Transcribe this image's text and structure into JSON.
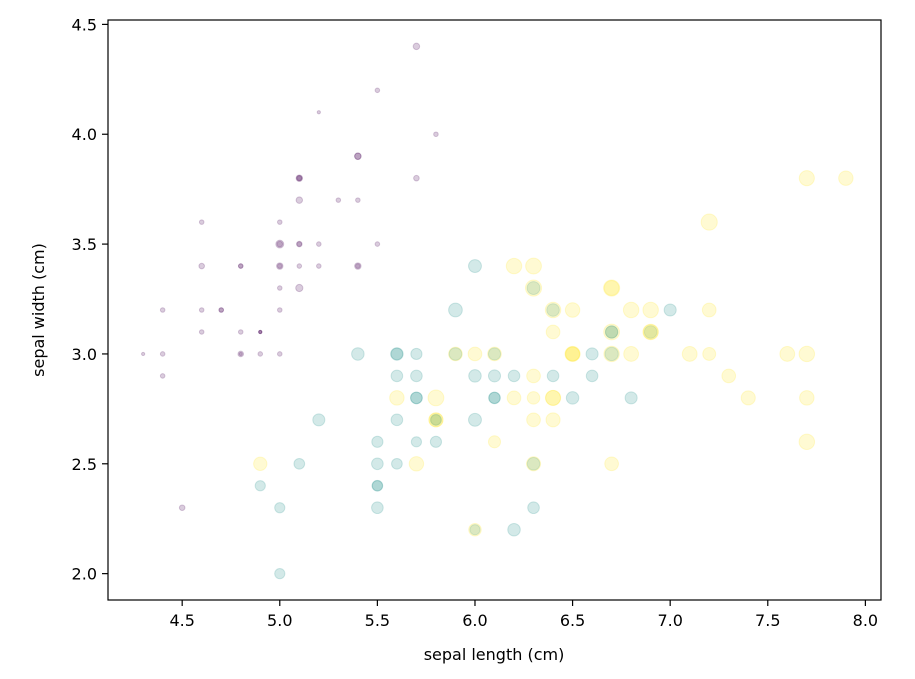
{
  "chart_data": {
    "type": "scatter",
    "title": "",
    "xlabel": "sepal length (cm)",
    "ylabel": "sepal width (cm)",
    "xlim": [
      4.12,
      8.08
    ],
    "ylim": [
      1.88,
      4.52
    ],
    "xticks": [
      4.5,
      5.0,
      5.5,
      6.0,
      6.5,
      7.0,
      7.5,
      8.0
    ],
    "yticks": [
      2.0,
      2.5,
      3.0,
      3.5,
      4.0,
      4.5
    ],
    "xtick_labels": [
      "4.5",
      "5.0",
      "5.5",
      "6.0",
      "6.5",
      "7.0",
      "7.5",
      "8.0"
    ],
    "ytick_labels": [
      "2.0",
      "2.5",
      "3.0",
      "3.5",
      "4.0",
      "4.5"
    ],
    "grid": false,
    "legend": "none",
    "marker_opacity": 0.2,
    "size_encoding": "marker area proportional to petal width",
    "colormap": "viridis",
    "class_colors": [
      "#440154",
      "#21918c",
      "#fde725"
    ],
    "series": [
      {
        "class_index": 0,
        "color": "#440154",
        "points": [
          [
            5.1,
            3.5,
            0.2
          ],
          [
            4.9,
            3.0,
            0.2
          ],
          [
            4.7,
            3.2,
            0.2
          ],
          [
            4.6,
            3.1,
            0.2
          ],
          [
            5.0,
            3.6,
            0.2
          ],
          [
            5.4,
            3.9,
            0.4
          ],
          [
            4.6,
            3.4,
            0.3
          ],
          [
            5.0,
            3.4,
            0.2
          ],
          [
            4.4,
            2.9,
            0.2
          ],
          [
            4.9,
            3.1,
            0.1
          ],
          [
            5.4,
            3.7,
            0.2
          ],
          [
            4.8,
            3.4,
            0.2
          ],
          [
            4.8,
            3.0,
            0.1
          ],
          [
            4.3,
            3.0,
            0.1
          ],
          [
            5.8,
            4.0,
            0.2
          ],
          [
            5.7,
            4.4,
            0.4
          ],
          [
            5.4,
            3.9,
            0.4
          ],
          [
            5.1,
            3.5,
            0.3
          ],
          [
            5.7,
            3.8,
            0.3
          ],
          [
            5.1,
            3.8,
            0.3
          ],
          [
            5.4,
            3.4,
            0.2
          ],
          [
            5.1,
            3.7,
            0.4
          ],
          [
            4.6,
            3.6,
            0.2
          ],
          [
            5.1,
            3.3,
            0.5
          ],
          [
            4.8,
            3.4,
            0.2
          ],
          [
            5.0,
            3.0,
            0.2
          ],
          [
            5.0,
            3.4,
            0.4
          ],
          [
            5.2,
            3.5,
            0.2
          ],
          [
            5.2,
            3.4,
            0.2
          ],
          [
            4.7,
            3.2,
            0.2
          ],
          [
            4.8,
            3.1,
            0.2
          ],
          [
            5.4,
            3.4,
            0.4
          ],
          [
            5.2,
            4.1,
            0.1
          ],
          [
            5.5,
            4.2,
            0.2
          ],
          [
            4.9,
            3.1,
            0.1
          ],
          [
            5.0,
            3.2,
            0.2
          ],
          [
            5.5,
            3.5,
            0.2
          ],
          [
            4.9,
            3.1,
            0.1
          ],
          [
            4.4,
            3.0,
            0.2
          ],
          [
            5.1,
            3.4,
            0.2
          ],
          [
            5.0,
            3.5,
            0.3
          ],
          [
            4.5,
            2.3,
            0.3
          ],
          [
            4.4,
            3.2,
            0.2
          ],
          [
            5.0,
            3.5,
            0.6
          ],
          [
            5.1,
            3.8,
            0.4
          ],
          [
            4.8,
            3.0,
            0.3
          ],
          [
            5.1,
            3.8,
            0.2
          ],
          [
            4.6,
            3.2,
            0.2
          ],
          [
            5.3,
            3.7,
            0.2
          ],
          [
            5.0,
            3.3,
            0.2
          ]
        ]
      },
      {
        "class_index": 1,
        "color": "#21918c",
        "points": [
          [
            7.0,
            3.2,
            1.4
          ],
          [
            6.4,
            3.2,
            1.5
          ],
          [
            6.9,
            3.1,
            1.5
          ],
          [
            5.5,
            2.3,
            1.3
          ],
          [
            6.5,
            2.8,
            1.5
          ],
          [
            5.7,
            2.8,
            1.3
          ],
          [
            6.3,
            3.3,
            1.6
          ],
          [
            4.9,
            2.4,
            1.0
          ],
          [
            6.6,
            2.9,
            1.3
          ],
          [
            5.2,
            2.7,
            1.4
          ],
          [
            5.0,
            2.0,
            1.0
          ],
          [
            5.9,
            3.0,
            1.5
          ],
          [
            6.0,
            2.2,
            1.0
          ],
          [
            6.1,
            2.9,
            1.4
          ],
          [
            5.6,
            2.9,
            1.3
          ],
          [
            6.7,
            3.1,
            1.4
          ],
          [
            5.6,
            3.0,
            1.5
          ],
          [
            5.8,
            2.7,
            1.0
          ],
          [
            6.2,
            2.2,
            1.5
          ],
          [
            5.6,
            2.5,
            1.1
          ],
          [
            5.9,
            3.2,
            1.8
          ],
          [
            6.1,
            2.8,
            1.3
          ],
          [
            6.3,
            2.5,
            1.5
          ],
          [
            6.1,
            2.8,
            1.2
          ],
          [
            6.4,
            2.9,
            1.3
          ],
          [
            6.6,
            3.0,
            1.4
          ],
          [
            6.8,
            2.8,
            1.4
          ],
          [
            6.7,
            3.0,
            1.7
          ],
          [
            6.0,
            2.9,
            1.5
          ],
          [
            5.7,
            2.6,
            1.0
          ],
          [
            5.5,
            2.4,
            1.1
          ],
          [
            5.5,
            2.4,
            1.0
          ],
          [
            5.8,
            2.7,
            1.2
          ],
          [
            6.0,
            2.7,
            1.6
          ],
          [
            5.4,
            3.0,
            1.5
          ],
          [
            6.0,
            3.4,
            1.6
          ],
          [
            6.7,
            3.1,
            1.5
          ],
          [
            6.3,
            2.3,
            1.3
          ],
          [
            5.6,
            3.0,
            1.3
          ],
          [
            5.5,
            2.5,
            1.3
          ],
          [
            5.5,
            2.6,
            1.2
          ],
          [
            6.1,
            3.0,
            1.4
          ],
          [
            5.8,
            2.6,
            1.2
          ],
          [
            5.0,
            2.3,
            1.0
          ],
          [
            5.6,
            2.7,
            1.3
          ],
          [
            5.7,
            3.0,
            1.2
          ],
          [
            5.7,
            2.9,
            1.3
          ],
          [
            6.2,
            2.9,
            1.3
          ],
          [
            5.1,
            2.5,
            1.1
          ],
          [
            5.7,
            2.8,
            1.3
          ]
        ]
      },
      {
        "class_index": 2,
        "color": "#fde725",
        "points": [
          [
            6.3,
            3.3,
            2.5
          ],
          [
            5.8,
            2.7,
            1.9
          ],
          [
            7.1,
            3.0,
            2.1
          ],
          [
            6.3,
            2.9,
            1.8
          ],
          [
            6.5,
            3.0,
            2.2
          ],
          [
            7.6,
            3.0,
            2.1
          ],
          [
            4.9,
            2.5,
            1.7
          ],
          [
            7.3,
            2.9,
            1.8
          ],
          [
            6.7,
            2.5,
            1.8
          ],
          [
            7.2,
            3.6,
            2.5
          ],
          [
            6.5,
            3.2,
            2.0
          ],
          [
            6.4,
            2.7,
            1.9
          ],
          [
            6.8,
            3.0,
            2.1
          ],
          [
            5.7,
            2.5,
            2.0
          ],
          [
            5.8,
            2.8,
            2.4
          ],
          [
            6.4,
            3.2,
            2.3
          ],
          [
            6.5,
            3.0,
            1.8
          ],
          [
            7.7,
            3.8,
            2.2
          ],
          [
            7.7,
            2.6,
            2.3
          ],
          [
            6.0,
            2.2,
            1.5
          ],
          [
            6.9,
            3.2,
            2.3
          ],
          [
            5.6,
            2.8,
            2.0
          ],
          [
            7.7,
            2.8,
            2.0
          ],
          [
            6.3,
            2.7,
            1.8
          ],
          [
            6.7,
            3.3,
            2.1
          ],
          [
            7.2,
            3.2,
            1.8
          ],
          [
            6.2,
            2.8,
            1.8
          ],
          [
            6.1,
            3.0,
            1.8
          ],
          [
            6.4,
            2.8,
            2.1
          ],
          [
            7.2,
            3.0,
            1.6
          ],
          [
            7.4,
            2.8,
            1.9
          ],
          [
            7.9,
            3.8,
            2.0
          ],
          [
            6.4,
            2.8,
            2.2
          ],
          [
            6.3,
            2.8,
            1.5
          ],
          [
            6.1,
            2.6,
            1.4
          ],
          [
            7.7,
            3.0,
            2.3
          ],
          [
            6.3,
            3.4,
            2.4
          ],
          [
            6.4,
            3.1,
            1.8
          ],
          [
            6.0,
            3.0,
            1.8
          ],
          [
            6.9,
            3.1,
            2.1
          ],
          [
            6.7,
            3.1,
            2.4
          ],
          [
            6.9,
            3.1,
            2.3
          ],
          [
            5.8,
            2.7,
            1.9
          ],
          [
            6.8,
            3.2,
            2.3
          ],
          [
            6.7,
            3.3,
            2.5
          ],
          [
            6.7,
            3.0,
            2.3
          ],
          [
            6.3,
            2.5,
            1.9
          ],
          [
            6.5,
            3.0,
            2.0
          ],
          [
            6.2,
            3.4,
            2.3
          ],
          [
            5.9,
            3.0,
            1.8
          ]
        ]
      }
    ]
  }
}
